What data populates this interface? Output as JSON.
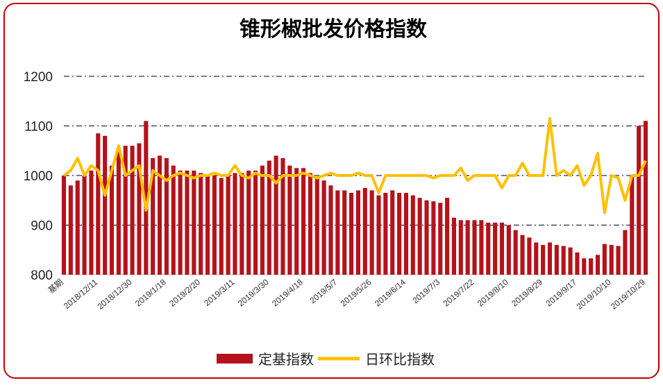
{
  "chart_data": {
    "type": "bar_line",
    "title": "锥形椒批发价格指数",
    "categories": [
      "基期",
      null,
      null,
      null,
      null,
      "2018/12/11",
      null,
      null,
      null,
      null,
      "2018/12/30",
      null,
      null,
      null,
      null,
      "2019/1/18",
      null,
      null,
      null,
      null,
      "2019/2/20",
      null,
      null,
      null,
      null,
      "2019/3/11",
      null,
      null,
      null,
      null,
      "2019/3/30",
      null,
      null,
      null,
      null,
      "2019/4/18",
      null,
      null,
      null,
      null,
      "2019/5/7",
      null,
      null,
      null,
      null,
      "2019/5/26",
      null,
      null,
      null,
      null,
      "2019/6/14",
      null,
      null,
      null,
      null,
      "2019/7/3",
      null,
      null,
      null,
      null,
      "2019/7/22",
      null,
      null,
      null,
      null,
      "2019/8/10",
      null,
      null,
      null,
      null,
      "2019/8/29",
      null,
      null,
      null,
      null,
      "2019/9/17",
      null,
      null,
      null,
      null,
      "2019/10/10",
      null,
      null,
      null,
      null,
      "2019/10/29"
    ],
    "series": [
      {
        "name": "定基指数",
        "type": "bar",
        "color": "#b5121b",
        "values": [
          1000,
          980,
          990,
          1000,
          1010,
          1085,
          1080,
          1020,
          1055,
          1060,
          1060,
          1065,
          1110,
          1035,
          1040,
          1035,
          1020,
          1010,
          1010,
          1010,
          1005,
          1000,
          1000,
          995,
          1000,
          1005,
          1005,
          1010,
          1010,
          1020,
          1030,
          1040,
          1035,
          1020,
          1015,
          1015,
          1005,
          995,
          990,
          980,
          970,
          970,
          965,
          970,
          975,
          970,
          960,
          965,
          970,
          965,
          965,
          960,
          955,
          950,
          948,
          945,
          955,
          915,
          910,
          910,
          910,
          910,
          905,
          905,
          905,
          900,
          890,
          880,
          875,
          865,
          860,
          865,
          860,
          858,
          855,
          845,
          833,
          833,
          840,
          862,
          860,
          858,
          890,
          1000,
          1100,
          1110
        ]
      },
      {
        "name": "日环比指数",
        "type": "line",
        "color": "#ffc000",
        "values": [
          1000,
          1010,
          1035,
          1000,
          1020,
          1010,
          960,
          1010,
          1060,
          1000,
          1010,
          1020,
          930,
          1010,
          1000,
          990,
          1000,
          1005,
          1000,
          995,
          1000,
          1000,
          1005,
          1000,
          1000,
          1020,
          1000,
          995,
          1005,
          1000,
          1000,
          985,
          1000,
          1000,
          1000,
          1005,
          1000,
          995,
          1000,
          1005,
          1000,
          1000,
          1000,
          1005,
          1000,
          1000,
          965,
          1000,
          1000,
          1000,
          1000,
          1000,
          1000,
          1000,
          995,
          1000,
          1000,
          1000,
          1015,
          990,
          1000,
          1000,
          1000,
          1000,
          975,
          1000,
          1000,
          1025,
          1000,
          1000,
          1000,
          1115,
          1000,
          1010,
          1000,
          1020,
          980,
          1000,
          1045,
          925,
          1000,
          995,
          950,
          1000,
          1000,
          1030
        ]
      }
    ],
    "ylim": [
      800,
      1200
    ],
    "yticks": [
      800,
      900,
      1000,
      1100,
      1200
    ],
    "grid": true,
    "legend": "bottom"
  }
}
